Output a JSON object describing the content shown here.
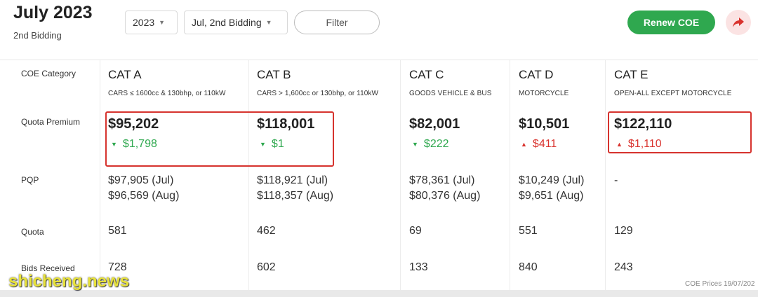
{
  "header": {
    "title": "July 2023",
    "subtitle": "2nd Bidding",
    "year_select": "2023",
    "round_select": "Jul, 2nd Bidding",
    "filter_label": "Filter",
    "renew_label": "Renew COE",
    "share_icon": "share-arrow-icon"
  },
  "row_labels": {
    "category": "COE Category",
    "premium": "Quota Premium",
    "pqp": "PQP",
    "quota": "Quota",
    "bids": "Bids Received"
  },
  "categories": [
    {
      "name": "CAT A",
      "desc": "CARS ≤ 1600cc & 130bhp, or 110kW",
      "premium": "$95,202",
      "change": "$1,798",
      "direction": "down",
      "pqp_jul": "$97,905 (Jul)",
      "pqp_aug": "$96,569 (Aug)",
      "quota": "581",
      "bids": "728"
    },
    {
      "name": "CAT B",
      "desc": "CARS > 1,600cc or 130bhp, or 110kW",
      "premium": "$118,001",
      "change": "$1",
      "direction": "down",
      "pqp_jul": "$118,921 (Jul)",
      "pqp_aug": "$118,357 (Aug)",
      "quota": "462",
      "bids": "602"
    },
    {
      "name": "CAT C",
      "desc": "GOODS VEHICLE & BUS",
      "premium": "$82,001",
      "change": "$222",
      "direction": "down",
      "pqp_jul": "$78,361 (Jul)",
      "pqp_aug": "$80,376 (Aug)",
      "quota": "69",
      "bids": "133"
    },
    {
      "name": "CAT D",
      "desc": "MOTORCYCLE",
      "premium": "$10,501",
      "change": "$411",
      "direction": "up",
      "pqp_jul": "$10,249 (Jul)",
      "pqp_aug": "$9,651 (Aug)",
      "quota": "551",
      "bids": "840"
    },
    {
      "name": "CAT E",
      "desc": "OPEN-ALL EXCEPT MOTORCYCLE",
      "premium": "$122,110",
      "change": "$1,110",
      "direction": "up",
      "pqp_jul": "-",
      "pqp_aug": "",
      "quota": "129",
      "bids": "243"
    }
  ],
  "colors": {
    "accent": "#2fa84f",
    "down": "#2fa84f",
    "up": "#d9332e",
    "highlight": "#d6332e"
  },
  "footer": {
    "prices_date": "COE Prices 19/07/202"
  },
  "watermark": "shicheng.news"
}
